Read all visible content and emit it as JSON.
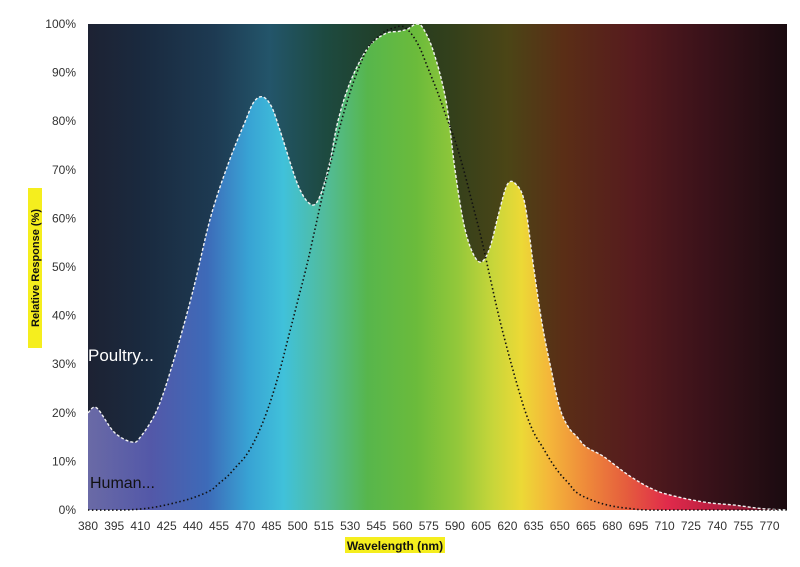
{
  "chart_data": {
    "type": "area",
    "title": "",
    "xlabel": "Wavelength (nm)",
    "ylabel": "Relative Response (%)",
    "xlim": [
      380,
      780
    ],
    "ylim": [
      0,
      100
    ],
    "x_ticks": [
      "380",
      "395",
      "410",
      "425",
      "440",
      "455",
      "470",
      "485",
      "500",
      "515",
      "530",
      "545",
      "560",
      "575",
      "590",
      "605",
      "620",
      "635",
      "650",
      "665",
      "680",
      "695",
      "710",
      "725",
      "740",
      "755",
      "770"
    ],
    "y_ticks": [
      "0%",
      "10%",
      "20%",
      "30%",
      "40%",
      "50%",
      "60%",
      "70%",
      "80%",
      "90%",
      "100%"
    ],
    "grid": false,
    "background": "visible-spectrum gradient",
    "label_highlight_color": "#f5ee1e",
    "series": [
      {
        "name": "Poultry...",
        "style": "filled area, white dashed outline",
        "outline_color": "#f2f2f2",
        "x": [
          380,
          385,
          395,
          405,
          410,
          420,
          430,
          440,
          450,
          460,
          470,
          475,
          480,
          485,
          490,
          500,
          507,
          512,
          518,
          523,
          530,
          540,
          550,
          558,
          563,
          568,
          572,
          578,
          585,
          590,
          595,
          600,
          605,
          610,
          615,
          620,
          625,
          630,
          635,
          640,
          645,
          650,
          655,
          660,
          665,
          675,
          690,
          705,
          720,
          735,
          750,
          765,
          780
        ],
        "y": [
          20,
          21,
          16,
          14,
          15,
          21,
          32,
          45,
          60,
          71,
          80,
          84,
          85,
          83,
          78,
          67,
          63,
          64,
          71,
          80,
          88,
          95,
          98,
          98.5,
          99,
          100,
          99,
          94,
          84,
          70,
          59,
          53,
          51,
          54,
          61,
          67,
          67,
          63,
          50,
          38,
          29,
          21,
          17,
          15,
          13,
          11,
          7,
          4,
          2.5,
          1.5,
          1,
          0.3,
          0
        ]
      },
      {
        "name": "Human...",
        "style": "black dotted line",
        "line_color": "#111111",
        "x": [
          380,
          400,
          410,
          420,
          430,
          440,
          450,
          455,
          460,
          465,
          470,
          475,
          480,
          485,
          490,
          495,
          500,
          505,
          510,
          515,
          520,
          525,
          530,
          535,
          540,
          545,
          550,
          555,
          560,
          565,
          570,
          575,
          580,
          585,
          590,
          595,
          600,
          605,
          610,
          615,
          620,
          625,
          630,
          635,
          640,
          645,
          650,
          655,
          660,
          670,
          680,
          690,
          700,
          720,
          780
        ],
        "y": [
          0,
          0,
          0.2,
          0.7,
          1.5,
          2.5,
          4,
          5.5,
          7,
          9,
          11,
          14,
          18,
          23,
          29,
          36,
          43,
          50,
          58,
          66,
          73,
          80,
          86,
          91,
          95,
          97,
          98.5,
          99.2,
          99.5,
          98,
          95,
          90.5,
          86,
          81,
          76,
          70,
          63,
          56,
          48,
          40,
          33,
          26.5,
          20.5,
          16,
          13,
          10,
          7.5,
          5.5,
          3.5,
          1.8,
          0.8,
          0.3,
          0,
          0,
          0
        ]
      }
    ]
  }
}
